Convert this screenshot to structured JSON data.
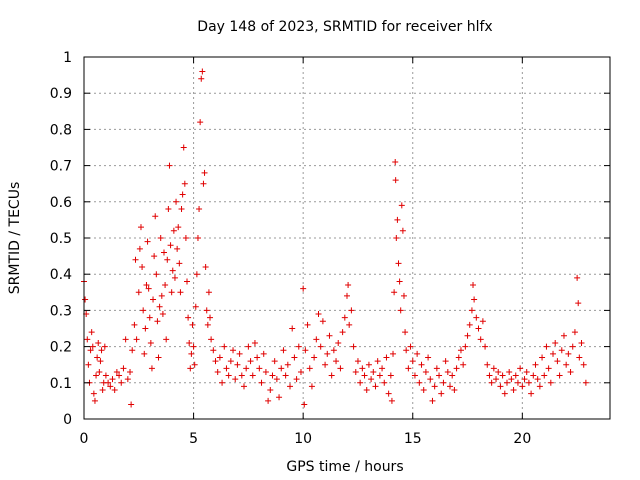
{
  "chart_data": {
    "type": "scatter",
    "title": "Day 148 of 2023, SRMTID for receiver hlfx",
    "xlabel": "GPS time / hours",
    "ylabel": "SRMTID / TECUs",
    "xlim": [
      0,
      24
    ],
    "ylim": [
      0,
      1
    ],
    "xticks": [
      0,
      5,
      10,
      15,
      20
    ],
    "yticks": [
      0,
      0.1,
      0.2,
      0.3,
      0.4,
      0.5,
      0.6,
      0.7,
      0.8,
      0.9,
      1
    ],
    "xtick_labels": [
      "0",
      "5",
      "10",
      "15",
      "20"
    ],
    "ytick_labels": [
      "0",
      "0.1",
      "0.2",
      "0.3",
      "0.4",
      "0.5",
      "0.6",
      "0.7",
      "0.8",
      "0.9",
      "1"
    ],
    "grid": true,
    "marker": "plus",
    "marker_color": "#e00000",
    "series": [
      {
        "name": "SRMTID",
        "points": [
          [
            0.0,
            0.38
          ],
          [
            0.05,
            0.33
          ],
          [
            0.1,
            0.29
          ],
          [
            0.15,
            0.22
          ],
          [
            0.2,
            0.15
          ],
          [
            0.25,
            0.1
          ],
          [
            0.3,
            0.19
          ],
          [
            0.35,
            0.24
          ],
          [
            0.4,
            0.2
          ],
          [
            0.45,
            0.07
          ],
          [
            0.5,
            0.05
          ],
          [
            0.55,
            0.12
          ],
          [
            0.6,
            0.17
          ],
          [
            0.65,
            0.21
          ],
          [
            0.7,
            0.13
          ],
          [
            0.75,
            0.16
          ],
          [
            0.8,
            0.19
          ],
          [
            0.85,
            0.08
          ],
          [
            0.9,
            0.1
          ],
          [
            0.95,
            0.2
          ],
          [
            1.0,
            0.12
          ],
          [
            1.1,
            0.1
          ],
          [
            1.2,
            0.09
          ],
          [
            1.3,
            0.11
          ],
          [
            1.4,
            0.08
          ],
          [
            1.5,
            0.13
          ],
          [
            1.6,
            0.12
          ],
          [
            1.7,
            0.1
          ],
          [
            1.8,
            0.14
          ],
          [
            1.9,
            0.22
          ],
          [
            2.0,
            0.11
          ],
          [
            2.1,
            0.13
          ],
          [
            2.15,
            0.04
          ],
          [
            2.2,
            0.19
          ],
          [
            2.3,
            0.26
          ],
          [
            2.35,
            0.44
          ],
          [
            2.4,
            0.22
          ],
          [
            2.5,
            0.35
          ],
          [
            2.55,
            0.47
          ],
          [
            2.6,
            0.53
          ],
          [
            2.65,
            0.42
          ],
          [
            2.7,
            0.3
          ],
          [
            2.75,
            0.18
          ],
          [
            2.8,
            0.25
          ],
          [
            2.85,
            0.37
          ],
          [
            2.9,
            0.49
          ],
          [
            2.95,
            0.36
          ],
          [
            3.0,
            0.28
          ],
          [
            3.05,
            0.21
          ],
          [
            3.1,
            0.14
          ],
          [
            3.15,
            0.33
          ],
          [
            3.2,
            0.45
          ],
          [
            3.25,
            0.56
          ],
          [
            3.3,
            0.4
          ],
          [
            3.35,
            0.27
          ],
          [
            3.4,
            0.17
          ],
          [
            3.45,
            0.31
          ],
          [
            3.5,
            0.5
          ],
          [
            3.55,
            0.34
          ],
          [
            3.6,
            0.29
          ],
          [
            3.65,
            0.46
          ],
          [
            3.7,
            0.37
          ],
          [
            3.75,
            0.22
          ],
          [
            3.8,
            0.44
          ],
          [
            3.85,
            0.58
          ],
          [
            3.9,
            0.7
          ],
          [
            3.95,
            0.48
          ],
          [
            4.0,
            0.35
          ],
          [
            4.05,
            0.41
          ],
          [
            4.1,
            0.52
          ],
          [
            4.15,
            0.39
          ],
          [
            4.2,
            0.6
          ],
          [
            4.25,
            0.47
          ],
          [
            4.3,
            0.53
          ],
          [
            4.35,
            0.43
          ],
          [
            4.4,
            0.35
          ],
          [
            4.45,
            0.58
          ],
          [
            4.5,
            0.62
          ],
          [
            4.55,
            0.75
          ],
          [
            4.6,
            0.65
          ],
          [
            4.65,
            0.5
          ],
          [
            4.7,
            0.38
          ],
          [
            4.75,
            0.28
          ],
          [
            4.8,
            0.21
          ],
          [
            4.85,
            0.14
          ],
          [
            4.9,
            0.18
          ],
          [
            4.95,
            0.26
          ],
          [
            5.0,
            0.2
          ],
          [
            5.05,
            0.15
          ],
          [
            5.1,
            0.31
          ],
          [
            5.15,
            0.4
          ],
          [
            5.2,
            0.5
          ],
          [
            5.25,
            0.58
          ],
          [
            5.3,
            0.82
          ],
          [
            5.35,
            0.94
          ],
          [
            5.4,
            0.96
          ],
          [
            5.45,
            0.65
          ],
          [
            5.5,
            0.68
          ],
          [
            5.55,
            0.42
          ],
          [
            5.6,
            0.3
          ],
          [
            5.65,
            0.26
          ],
          [
            5.7,
            0.35
          ],
          [
            5.75,
            0.28
          ],
          [
            5.8,
            0.22
          ],
          [
            5.9,
            0.19
          ],
          [
            6.0,
            0.16
          ],
          [
            6.1,
            0.13
          ],
          [
            6.2,
            0.17
          ],
          [
            6.3,
            0.1
          ],
          [
            6.4,
            0.2
          ],
          [
            6.5,
            0.14
          ],
          [
            6.6,
            0.12
          ],
          [
            6.7,
            0.16
          ],
          [
            6.8,
            0.19
          ],
          [
            6.9,
            0.11
          ],
          [
            7.0,
            0.15
          ],
          [
            7.1,
            0.18
          ],
          [
            7.2,
            0.12
          ],
          [
            7.3,
            0.09
          ],
          [
            7.4,
            0.14
          ],
          [
            7.5,
            0.2
          ],
          [
            7.6,
            0.16
          ],
          [
            7.7,
            0.12
          ],
          [
            7.8,
            0.21
          ],
          [
            7.9,
            0.17
          ],
          [
            8.0,
            0.14
          ],
          [
            8.1,
            0.1
          ],
          [
            8.2,
            0.18
          ],
          [
            8.3,
            0.13
          ],
          [
            8.4,
            0.05
          ],
          [
            8.5,
            0.08
          ],
          [
            8.6,
            0.12
          ],
          [
            8.7,
            0.16
          ],
          [
            8.8,
            0.11
          ],
          [
            8.9,
            0.06
          ],
          [
            9.0,
            0.14
          ],
          [
            9.1,
            0.19
          ],
          [
            9.2,
            0.12
          ],
          [
            9.3,
            0.15
          ],
          [
            9.4,
            0.09
          ],
          [
            9.5,
            0.25
          ],
          [
            9.6,
            0.17
          ],
          [
            9.7,
            0.11
          ],
          [
            9.8,
            0.2
          ],
          [
            9.9,
            0.13
          ],
          [
            10.0,
            0.36
          ],
          [
            10.05,
            0.04
          ],
          [
            10.1,
            0.19
          ],
          [
            10.2,
            0.26
          ],
          [
            10.3,
            0.14
          ],
          [
            10.4,
            0.09
          ],
          [
            10.5,
            0.17
          ],
          [
            10.6,
            0.22
          ],
          [
            10.7,
            0.29
          ],
          [
            10.8,
            0.2
          ],
          [
            10.9,
            0.27
          ],
          [
            11.0,
            0.15
          ],
          [
            11.1,
            0.18
          ],
          [
            11.2,
            0.23
          ],
          [
            11.3,
            0.12
          ],
          [
            11.4,
            0.19
          ],
          [
            11.5,
            0.16
          ],
          [
            11.6,
            0.21
          ],
          [
            11.7,
            0.14
          ],
          [
            11.8,
            0.24
          ],
          [
            11.9,
            0.28
          ],
          [
            12.0,
            0.34
          ],
          [
            12.05,
            0.37
          ],
          [
            12.1,
            0.26
          ],
          [
            12.2,
            0.3
          ],
          [
            12.3,
            0.2
          ],
          [
            12.4,
            0.13
          ],
          [
            12.5,
            0.16
          ],
          [
            12.6,
            0.1
          ],
          [
            12.7,
            0.14
          ],
          [
            12.8,
            0.12
          ],
          [
            12.9,
            0.08
          ],
          [
            13.0,
            0.15
          ],
          [
            13.1,
            0.11
          ],
          [
            13.2,
            0.13
          ],
          [
            13.3,
            0.09
          ],
          [
            13.4,
            0.16
          ],
          [
            13.5,
            0.12
          ],
          [
            13.6,
            0.14
          ],
          [
            13.7,
            0.1
          ],
          [
            13.8,
            0.17
          ],
          [
            13.9,
            0.07
          ],
          [
            14.0,
            0.12
          ],
          [
            14.05,
            0.05
          ],
          [
            14.1,
            0.18
          ],
          [
            14.15,
            0.35
          ],
          [
            14.2,
            0.71
          ],
          [
            14.22,
            0.66
          ],
          [
            14.25,
            0.5
          ],
          [
            14.3,
            0.55
          ],
          [
            14.35,
            0.43
          ],
          [
            14.4,
            0.38
          ],
          [
            14.45,
            0.3
          ],
          [
            14.5,
            0.59
          ],
          [
            14.55,
            0.52
          ],
          [
            14.6,
            0.34
          ],
          [
            14.65,
            0.24
          ],
          [
            14.7,
            0.19
          ],
          [
            14.8,
            0.14
          ],
          [
            14.9,
            0.2
          ],
          [
            15.0,
            0.16
          ],
          [
            15.1,
            0.12
          ],
          [
            15.2,
            0.18
          ],
          [
            15.3,
            0.1
          ],
          [
            15.4,
            0.15
          ],
          [
            15.5,
            0.08
          ],
          [
            15.6,
            0.13
          ],
          [
            15.7,
            0.17
          ],
          [
            15.8,
            0.11
          ],
          [
            15.9,
            0.05
          ],
          [
            16.0,
            0.09
          ],
          [
            16.1,
            0.14
          ],
          [
            16.2,
            0.12
          ],
          [
            16.3,
            0.07
          ],
          [
            16.4,
            0.1
          ],
          [
            16.5,
            0.16
          ],
          [
            16.6,
            0.13
          ],
          [
            16.7,
            0.09
          ],
          [
            16.8,
            0.12
          ],
          [
            16.9,
            0.08
          ],
          [
            17.0,
            0.14
          ],
          [
            17.1,
            0.17
          ],
          [
            17.2,
            0.19
          ],
          [
            17.3,
            0.15
          ],
          [
            17.4,
            0.2
          ],
          [
            17.5,
            0.23
          ],
          [
            17.6,
            0.26
          ],
          [
            17.7,
            0.3
          ],
          [
            17.75,
            0.37
          ],
          [
            17.8,
            0.33
          ],
          [
            17.9,
            0.28
          ],
          [
            18.0,
            0.25
          ],
          [
            18.1,
            0.22
          ],
          [
            18.2,
            0.27
          ],
          [
            18.3,
            0.2
          ],
          [
            18.4,
            0.15
          ],
          [
            18.5,
            0.12
          ],
          [
            18.6,
            0.1
          ],
          [
            18.7,
            0.14
          ],
          [
            18.8,
            0.11
          ],
          [
            18.9,
            0.13
          ],
          [
            19.0,
            0.09
          ],
          [
            19.1,
            0.12
          ],
          [
            19.2,
            0.07
          ],
          [
            19.3,
            0.1
          ],
          [
            19.4,
            0.13
          ],
          [
            19.5,
            0.11
          ],
          [
            19.6,
            0.08
          ],
          [
            19.7,
            0.12
          ],
          [
            19.8,
            0.1
          ],
          [
            19.9,
            0.14
          ],
          [
            20.0,
            0.09
          ],
          [
            20.1,
            0.11
          ],
          [
            20.2,
            0.13
          ],
          [
            20.3,
            0.1
          ],
          [
            20.4,
            0.07
          ],
          [
            20.5,
            0.12
          ],
          [
            20.6,
            0.15
          ],
          [
            20.7,
            0.11
          ],
          [
            20.8,
            0.09
          ],
          [
            20.9,
            0.17
          ],
          [
            21.0,
            0.12
          ],
          [
            21.1,
            0.2
          ],
          [
            21.2,
            0.14
          ],
          [
            21.3,
            0.1
          ],
          [
            21.4,
            0.18
          ],
          [
            21.5,
            0.21
          ],
          [
            21.6,
            0.16
          ],
          [
            21.7,
            0.12
          ],
          [
            21.8,
            0.19
          ],
          [
            21.9,
            0.23
          ],
          [
            22.0,
            0.15
          ],
          [
            22.1,
            0.18
          ],
          [
            22.2,
            0.13
          ],
          [
            22.3,
            0.2
          ],
          [
            22.4,
            0.24
          ],
          [
            22.5,
            0.39
          ],
          [
            22.55,
            0.32
          ],
          [
            22.6,
            0.17
          ],
          [
            22.7,
            0.21
          ],
          [
            22.8,
            0.15
          ],
          [
            22.9,
            0.1
          ]
        ]
      }
    ]
  }
}
